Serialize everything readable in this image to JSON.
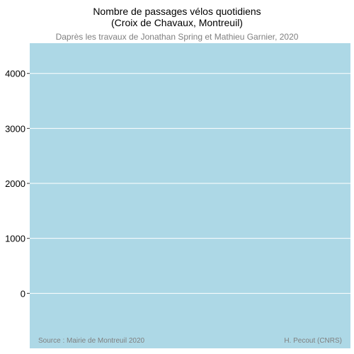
{
  "chart_data": {
    "type": "line",
    "title_lines": [
      "Nombre de passages vélos quotidiens",
      "(Croix de Chavaux, Montreuil)"
    ],
    "subtitle": "Daprès les travaux de Jonathan Spring et Mathieu Garnier, 2020",
    "xlabel": "",
    "ylabel": "",
    "y_ticks": [
      0,
      1000,
      2000,
      3000,
      4000
    ],
    "ylim": [
      -1000,
      4550
    ],
    "grid": true,
    "series": [],
    "source": "Source : Mairie de Montreuil 2020",
    "credit": "H. Pecout (CNRS)",
    "colors": {
      "panel": "#add8e6",
      "grid": "#ffffff",
      "caption": "#7f7f7f",
      "subtitle": "#7f7f7f"
    }
  }
}
